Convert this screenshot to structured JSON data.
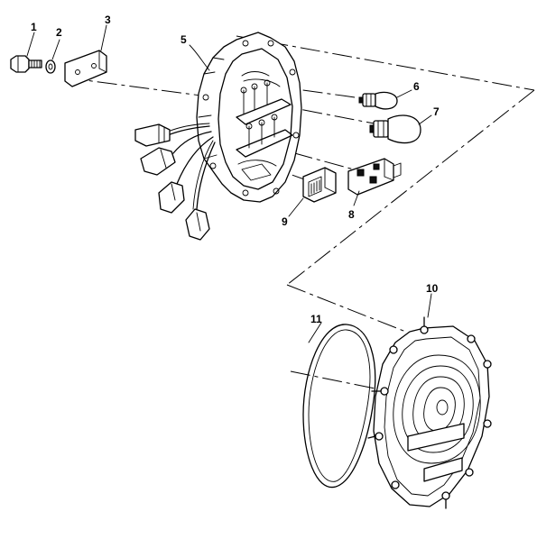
{
  "callouts": {
    "c1": "1",
    "c2": "2",
    "c3": "3",
    "c5": "5",
    "c6": "6",
    "c7": "7",
    "c8": "8",
    "c9": "9",
    "c10": "10",
    "c11": "11"
  }
}
